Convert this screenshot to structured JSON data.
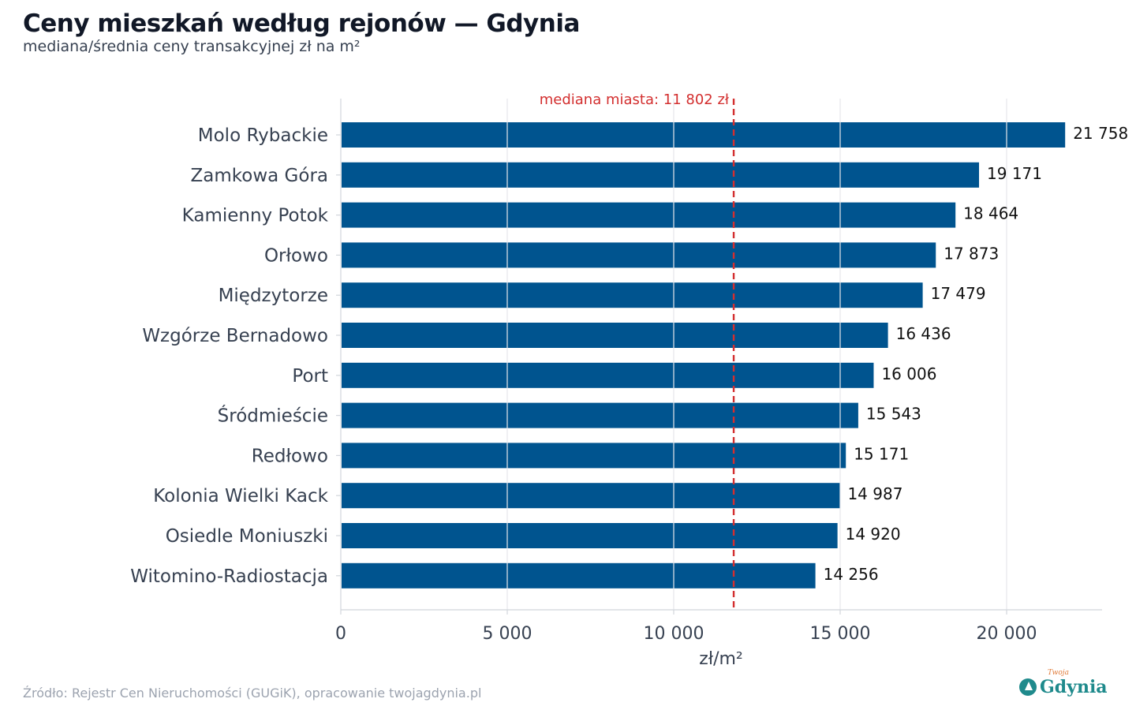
{
  "title": "Ceny mieszkań według rejonów — Gdynia",
  "subtitle": "mediana/średnia ceny transakcyjnej zł na m²",
  "source": "Źródło: Rejestr Cen Nieruchomości (GUGiK), opracowanie twojagdynia.pl",
  "logo": {
    "small_text": "Twoja",
    "word": "Gdynia"
  },
  "colors": {
    "bar": "#00548f",
    "reference": "#d32f2f",
    "grid": "#e5e7eb",
    "label": "#374151",
    "value": "#111111"
  },
  "chart_data": {
    "type": "bar",
    "orientation": "horizontal",
    "categories": [
      "Molo Rybackie",
      "Zamkowa Góra",
      "Kamienny Potok",
      "Orłowo",
      "Międzytorze",
      "Wzgórze Bernadowo",
      "Port",
      "Śródmieście",
      "Redłowo",
      "Kolonia Wielki Kack",
      "Osiedle Moniuszki",
      "Witomino-Radiostacja"
    ],
    "values": [
      21758,
      19171,
      18464,
      17873,
      17479,
      16436,
      16006,
      15543,
      15171,
      14987,
      14920,
      14256
    ],
    "value_labels": [
      "21 758",
      "19 171",
      "18 464",
      "17 873",
      "17 479",
      "16 436",
      "16 006",
      "15 543",
      "15 171",
      "14 987",
      "14 920",
      "14 256"
    ],
    "xlabel": "zł/m²",
    "xlim": [
      0,
      22800
    ],
    "xticks": [
      0,
      5000,
      10000,
      15000,
      20000
    ],
    "xtick_labels": [
      "0",
      "5 000",
      "10 000",
      "15 000",
      "20 000"
    ],
    "grid": true,
    "reference_line": {
      "value": 11802,
      "label": "mediana miasta: 11 802 zł"
    }
  }
}
